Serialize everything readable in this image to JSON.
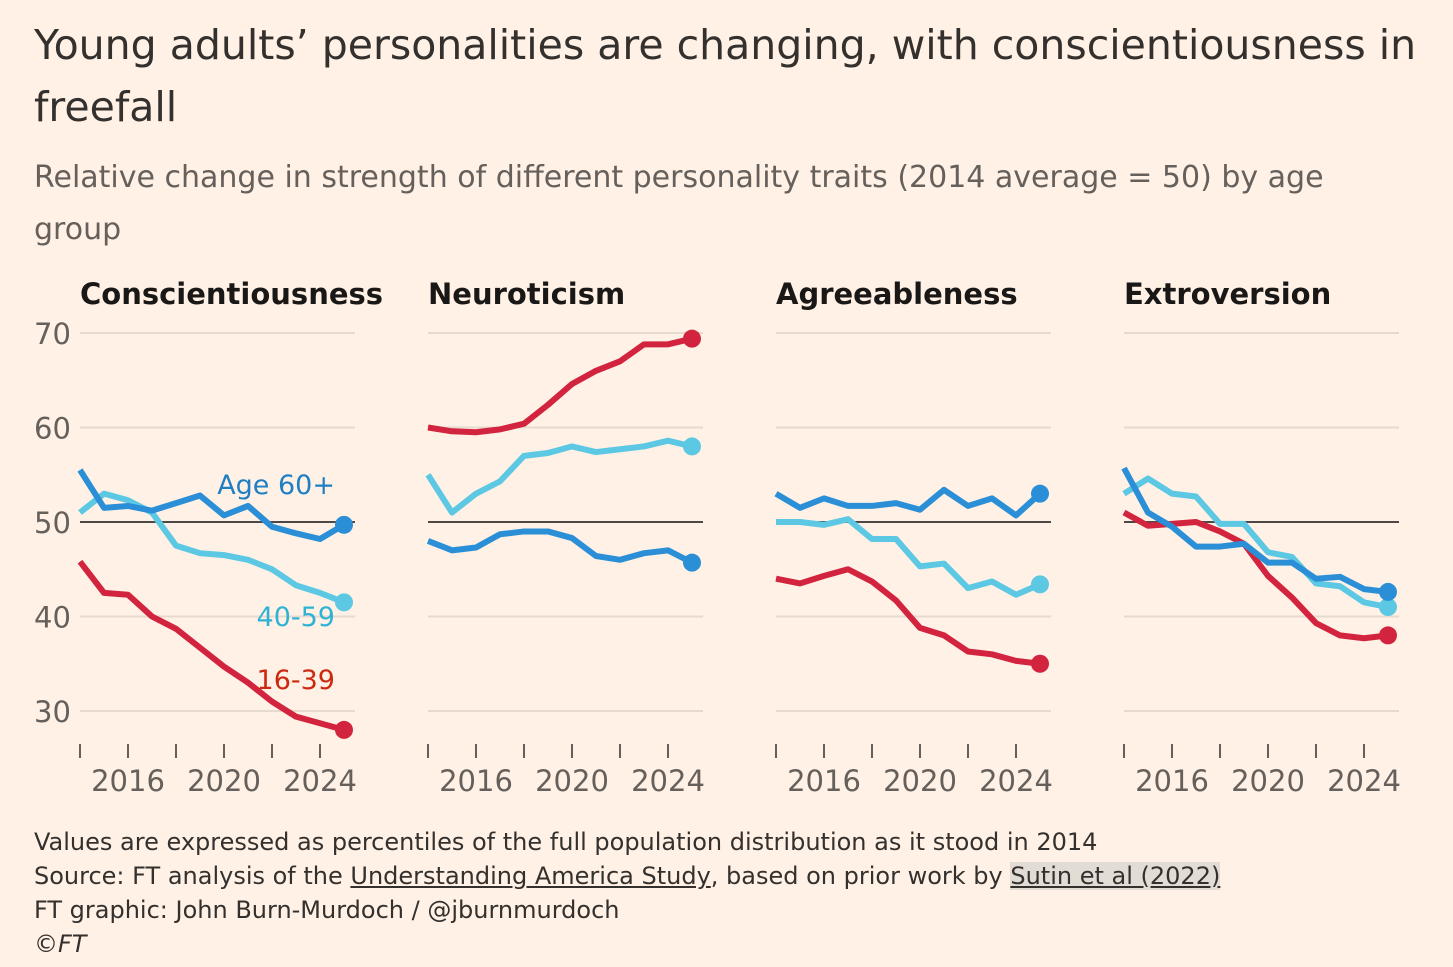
{
  "chart_data": {
    "type": "line",
    "title": "Young adults’ personalities are changing, with conscientiousness in freefall",
    "subtitle": "Relative change in strength of different personality traits (2014 average = 50) by age group",
    "x": [
      2014,
      2015,
      2016,
      2017,
      2018,
      2019,
      2020,
      2021,
      2022,
      2023,
      2024,
      2025
    ],
    "xticks": [
      2016,
      2020,
      2024
    ],
    "yticks": [
      30,
      40,
      50,
      60,
      70
    ],
    "ylim": [
      26,
      72
    ],
    "reference_line": 50,
    "colors": {
      "Age 60+": "#2a8fd6",
      "40-59": "#5cc8e3",
      "16-39": "#d2243e",
      "label_16_39": "#cc2a10"
    },
    "panels": [
      {
        "title": "Conscientiousness",
        "series": [
          {
            "name": "Age 60+",
            "values": [
              55.5,
              51.5,
              51.7,
              51.2,
              52,
              52.8,
              50.7,
              51.7,
              49.5,
              48.8,
              48.2,
              49.7
            ]
          },
          {
            "name": "40-59",
            "values": [
              51,
              53,
              52.3,
              51,
              47.5,
              46.7,
              46.5,
              46,
              45,
              43.3,
              42.5,
              41.5
            ]
          },
          {
            "name": "16-39",
            "values": [
              45.8,
              42.5,
              42.3,
              40,
              38.7,
              36.7,
              34.7,
              33,
              31,
              29.4,
              28.7,
              28
            ]
          }
        ]
      },
      {
        "title": "Neuroticism",
        "series": [
          {
            "name": "Age 60+",
            "values": [
              48,
              47,
              47.3,
              48.7,
              49,
              49,
              48.3,
              46.4,
              46,
              46.7,
              47,
              45.7
            ]
          },
          {
            "name": "40-59",
            "values": [
              55,
              51,
              53,
              54.3,
              57,
              57.3,
              58,
              57.4,
              57.7,
              58,
              58.6,
              58
            ]
          },
          {
            "name": "16-39",
            "values": [
              60,
              59.6,
              59.5,
              59.8,
              60.4,
              62.4,
              64.6,
              66,
              67,
              68.8,
              68.8,
              69.4
            ]
          }
        ]
      },
      {
        "title": "Agreeableness",
        "series": [
          {
            "name": "Age 60+",
            "values": [
              53,
              51.5,
              52.5,
              51.7,
              51.7,
              52,
              51.3,
              53.4,
              51.7,
              52.5,
              50.7,
              53
            ]
          },
          {
            "name": "40-59",
            "values": [
              50,
              50,
              49.7,
              50.3,
              48.2,
              48.2,
              45.3,
              45.6,
              43,
              43.7,
              42.3,
              43.4
            ]
          },
          {
            "name": "16-39",
            "values": [
              44,
              43.5,
              44.3,
              45,
              43.7,
              41.7,
              38.8,
              38,
              36.3,
              36,
              35.3,
              35
            ]
          }
        ]
      },
      {
        "title": "Extroversion",
        "series": [
          {
            "name": "Age 60+",
            "values": [
              55.7,
              51,
              49.5,
              47.4,
              47.4,
              47.7,
              45.7,
              45.7,
              44,
              44.2,
              42.9,
              42.6
            ]
          },
          {
            "name": "40-59",
            "values": [
              53,
              54.6,
              53,
              52.7,
              49.8,
              49.8,
              46.8,
              46.3,
              43.5,
              43.2,
              41.5,
              41
            ]
          },
          {
            "name": "16-39",
            "values": [
              51,
              49.6,
              49.8,
              50,
              49,
              47.7,
              44.3,
              42,
              39.3,
              38,
              37.7,
              38
            ]
          }
        ]
      }
    ],
    "series_labels": [
      "Age 60+",
      "40-59",
      "16-39"
    ]
  },
  "footer": {
    "note": "Values are expressed as percentiles of the full population distribution as it stood in 2014",
    "source_prefix": "Source: FT analysis of the ",
    "source_link1": "Understanding America Study",
    "source_mid": ", based on prior work by ",
    "source_link2": "Sutin et al (2022)",
    "credit": "FT graphic: John Burn-Murdoch / @jburnmurdoch",
    "copyright": "©FT"
  }
}
